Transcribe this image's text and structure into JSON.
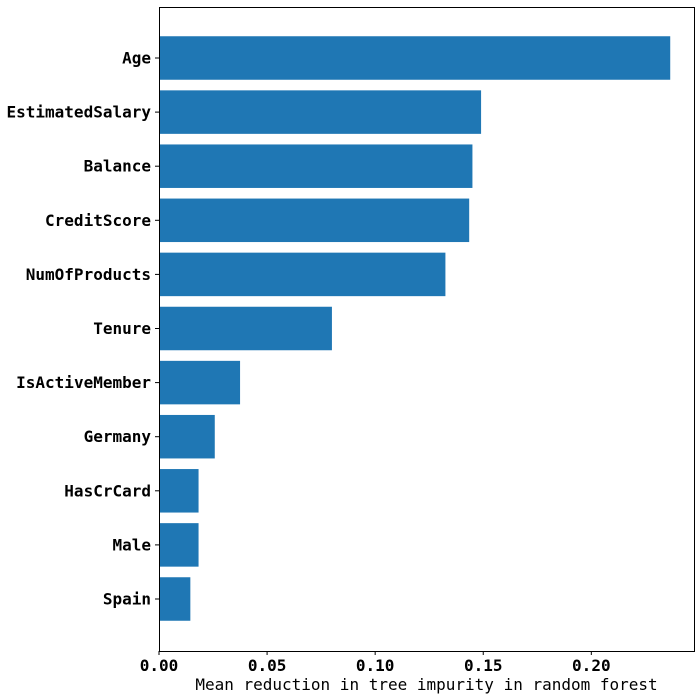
{
  "chart_data": {
    "type": "bar",
    "orientation": "horizontal",
    "categories": [
      "Age",
      "EstimatedSalary",
      "Balance",
      "CreditScore",
      "NumOfProducts",
      "Tenure",
      "IsActiveMember",
      "Germany",
      "HasCrCard",
      "Male",
      "Spain"
    ],
    "values": [
      0.2365,
      0.149,
      0.145,
      0.1435,
      0.1325,
      0.08,
      0.0375,
      0.0258,
      0.0183,
      0.0183,
      0.0145
    ],
    "xlabel": "Mean reduction in tree impurity in random forest",
    "ylabel": "",
    "xlim": [
      0,
      0.2475
    ],
    "xticks": [
      0.0,
      0.05,
      0.1,
      0.15,
      0.2
    ],
    "xtick_labels": [
      "0.00",
      "0.05",
      "0.10",
      "0.15",
      "0.20"
    ],
    "grid": false,
    "bar_color": "#1f77b4"
  }
}
